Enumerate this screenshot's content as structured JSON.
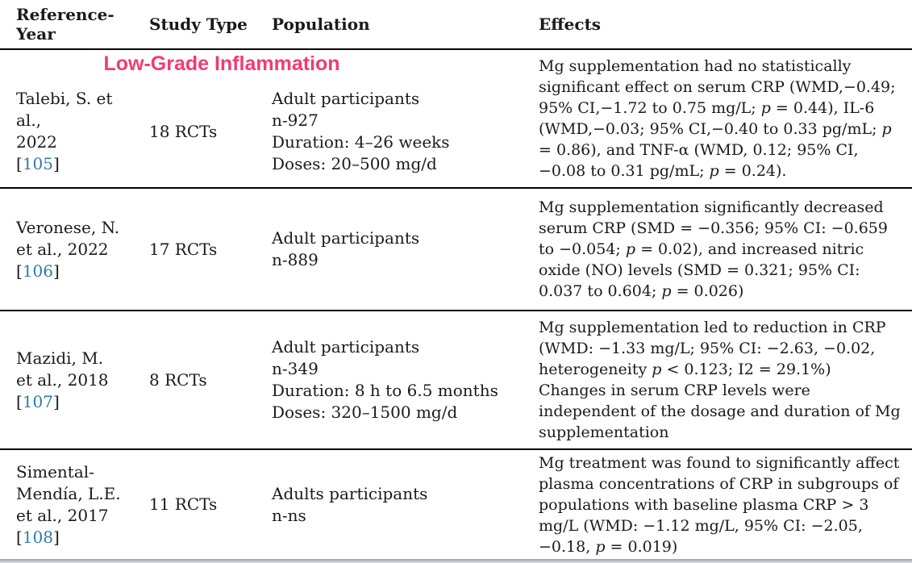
{
  "colors": {
    "section_header": "#F23B72",
    "citation_link": "#3279A8",
    "text": "#1A1A1A",
    "rule": "#000000"
  },
  "table": {
    "headers": [
      "Reference-Year",
      "Study Type",
      "Population",
      "Effects"
    ],
    "section_label": "Low-Grade Inflammation",
    "bracket_open": "[",
    "bracket_close": "]",
    "rows": [
      {
        "reference_lines": [
          "Talebi, S. et al.,",
          "2022"
        ],
        "citation": "105",
        "study_type": "18 RCTs",
        "population_lines": [
          "Adult participants",
          "n-927",
          "Duration: 4–26 weeks",
          "Doses: 20–500 mg/d"
        ],
        "effects_runs": [
          {
            "t": "Mg supplementation had no statistically significant effect on serum CRP (WMD,−0.49; 95% CI,−1.72 to 0.75 mg/L; "
          },
          {
            "t": "p",
            "i": true
          },
          {
            "t": " = 0.44), IL-6 (WMD,−0.03; 95% CI,−0.40 to 0.33 pg/mL; "
          },
          {
            "t": "p",
            "i": true
          },
          {
            "t": " = 0.86), and TNF-α (WMD, 0.12; 95% CI,−0.08 to 0.31 pg/mL; "
          },
          {
            "t": "p",
            "i": true
          },
          {
            "t": " = 0.24)."
          }
        ]
      },
      {
        "reference_lines": [
          "Veronese, N.",
          "et al., 2022"
        ],
        "citation": "106",
        "study_type": "17 RCTs",
        "population_lines": [
          "Adult participants",
          "n-889"
        ],
        "effects_runs": [
          {
            "t": "Mg supplementation significantly decreased serum CRP (SMD = −0.356; 95% CI: −0.659 to −0.054; "
          },
          {
            "t": "p",
            "i": true
          },
          {
            "t": " = 0.02), and increased nitric oxide (NO) levels (SMD = 0.321; 95% CI: 0.037 to 0.604; "
          },
          {
            "t": "p",
            "i": true
          },
          {
            "t": " = 0.026)"
          }
        ]
      },
      {
        "reference_lines": [
          "Mazidi, M.",
          "et al., 2018"
        ],
        "citation": "107",
        "study_type": "8 RCTs",
        "population_lines": [
          "Adult participants",
          "n-349",
          "Duration: 8 h to 6.5 months",
          "Doses: 320–1500 mg/d"
        ],
        "effects_runs": [
          {
            "t": "Mg supplementation led to reduction in CRP (WMD: −1.33 mg/L; 95% CI: −2.63, −0.02, heterogeneity "
          },
          {
            "t": "p",
            "i": true
          },
          {
            "t": " < 0.123; I2 = 29.1%)"
          },
          {
            "br": true
          },
          {
            "t": "Changes in serum CRP levels were independent of the dosage and duration of Mg supplementation"
          }
        ]
      },
      {
        "reference_lines": [
          "Simental-",
          "Mendía, L.E.",
          "et al., 2017"
        ],
        "citation": "108",
        "study_type": "11 RCTs",
        "population_lines": [
          "Adults participants",
          "n-ns"
        ],
        "effects_runs": [
          {
            "t": "Mg treatment was found to significantly affect plasma concentrations of CRP in subgroups of populations with baseline plasma CRP > 3 mg/L (WMD: −1.12 mg/L, 95% CI: −2.05, −0.18, "
          },
          {
            "t": "p",
            "i": true
          },
          {
            "t": " = 0.019)"
          }
        ]
      }
    ]
  }
}
